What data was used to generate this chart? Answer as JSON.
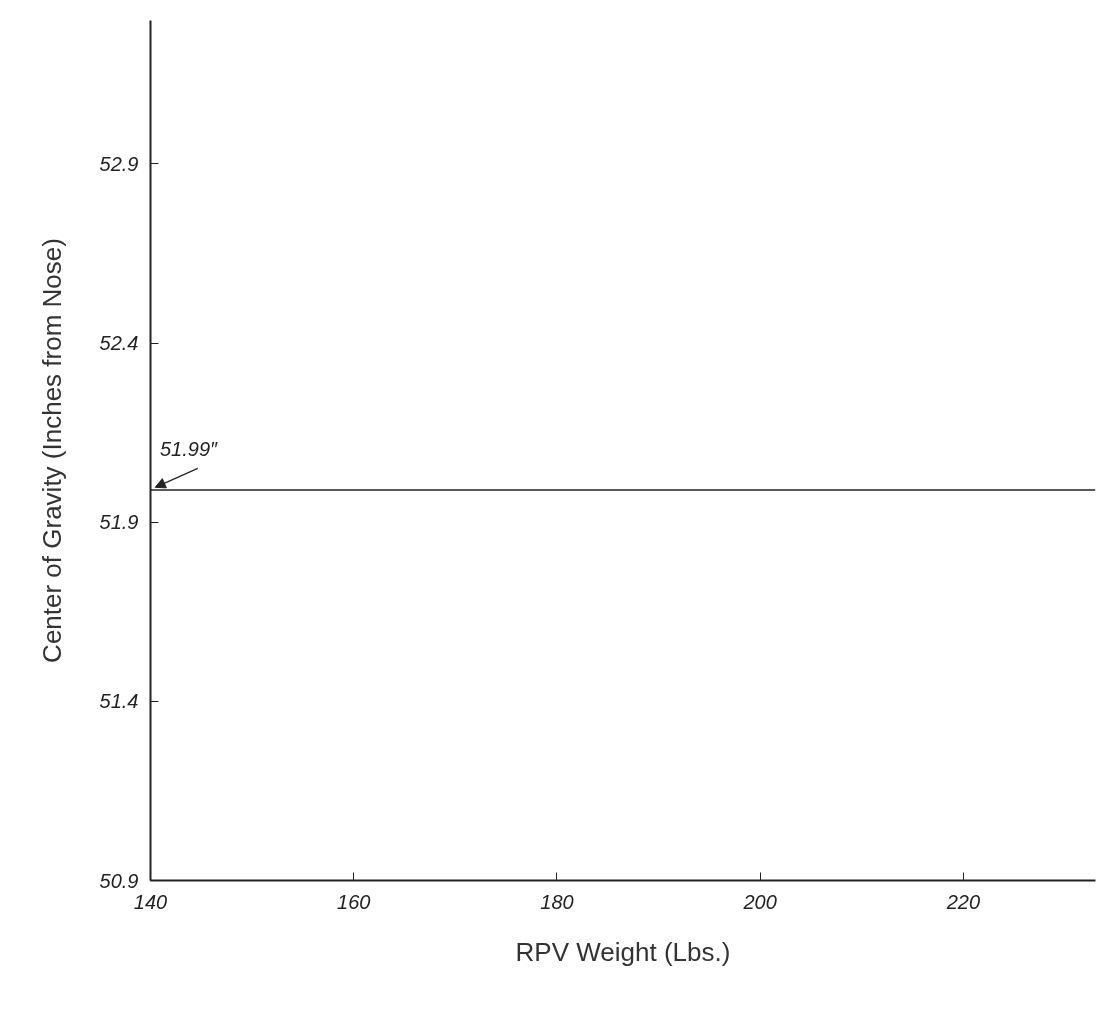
{
  "chart_data": {
    "type": "line",
    "xlabel": "RPV Weight (Lbs.)",
    "ylabel": "Center of Gravity (Inches from Nose)",
    "xlim": [
      140,
      233
    ],
    "ylim": [
      50.9,
      53.3
    ],
    "xticks": [
      140,
      160,
      180,
      200,
      220
    ],
    "yticks": [
      50.9,
      51.4,
      51.9,
      52.4,
      52.9
    ],
    "series": [
      {
        "color": "#222222",
        "x": [
          140,
          233
        ],
        "values": [
          51.99,
          51.99
        ]
      }
    ],
    "annotations": [
      {
        "text": "51.99″",
        "x": 140,
        "y": 51.99
      }
    ],
    "grid": false,
    "marker": "none",
    "line_style": "solid"
  }
}
